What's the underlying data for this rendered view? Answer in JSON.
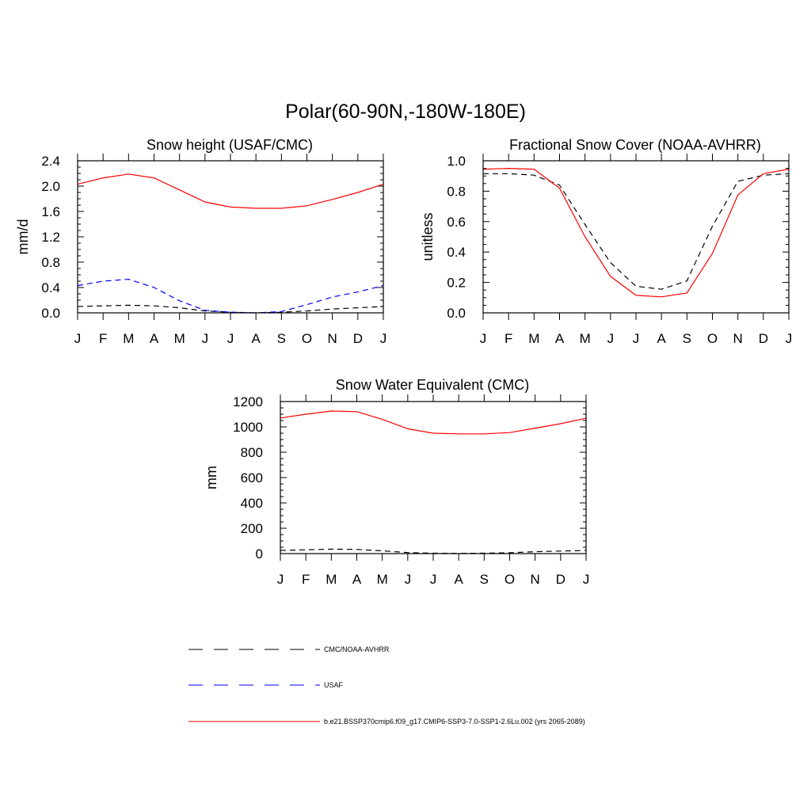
{
  "figure": {
    "title": "Polar(60-90N,-180W-180E)"
  },
  "styles": {
    "obs_color": "#000000",
    "usaf_color": "#0000ff",
    "model_color": "#ff0000"
  },
  "legend": {
    "items": [
      {
        "label": "CMC/NOAA-AVHRR",
        "color": "#000000",
        "dash": "dashed"
      },
      {
        "label": "USAF",
        "color": "#0000ff",
        "dash": "dashed"
      },
      {
        "label": "b.e21.BSSP370cmip6.f09_g17.CMIP6-SSP3-7.0-SSP1-2.6Lu.002 (yrs 2065-2089)",
        "color": "#ff0000",
        "dash": "solid"
      }
    ]
  },
  "chart_data": [
    {
      "type": "line",
      "title": "Snow height (USAF/CMC)",
      "ylabel": "mm/d",
      "xlabel": "",
      "categories": [
        "J",
        "F",
        "M",
        "A",
        "M",
        "J",
        "J",
        "A",
        "S",
        "O",
        "N",
        "D",
        "J"
      ],
      "ylim": [
        0,
        2.4
      ],
      "yticks": [
        0.0,
        0.4,
        0.8,
        1.2,
        1.6,
        2.0,
        2.4
      ],
      "ytick_labels": [
        "0.0",
        "0.4",
        "0.8",
        "1.2",
        "1.6",
        "2.0",
        "2.4"
      ],
      "grid": false,
      "series": [
        {
          "name": "CMC/NOAA-AVHRR",
          "color": "#000000",
          "dash": "dashed",
          "values": [
            0.1,
            0.11,
            0.12,
            0.11,
            0.08,
            0.03,
            0.01,
            0.0,
            0.01,
            0.03,
            0.06,
            0.08,
            0.1
          ]
        },
        {
          "name": "USAF",
          "color": "#0000ff",
          "dash": "dashed",
          "values": [
            0.43,
            0.5,
            0.53,
            0.4,
            0.19,
            0.04,
            0.01,
            0.0,
            0.02,
            0.13,
            0.25,
            0.33,
            0.43
          ]
        },
        {
          "name": "b.e21.BSSP370cmip6.f09_g17.CMIP6-SSP3-7.0-SSP1-2.6Lu.002 (yrs 2065-2089)",
          "color": "#ff0000",
          "dash": "solid",
          "values": [
            2.03,
            2.13,
            2.19,
            2.13,
            1.94,
            1.75,
            1.67,
            1.65,
            1.65,
            1.69,
            1.79,
            1.9,
            2.03
          ]
        }
      ]
    },
    {
      "type": "line",
      "title": "Fractional Snow Cover (NOAA-AVHRR)",
      "ylabel": "unitless",
      "xlabel": "",
      "categories": [
        "J",
        "F",
        "M",
        "A",
        "M",
        "J",
        "J",
        "A",
        "S",
        "O",
        "N",
        "D",
        "J"
      ],
      "ylim": [
        0,
        1.0
      ],
      "yticks": [
        0.0,
        0.2,
        0.4,
        0.6,
        0.8,
        1.0
      ],
      "ytick_labels": [
        "0.0",
        "0.2",
        "0.4",
        "0.6",
        "0.8",
        "1.0"
      ],
      "grid": false,
      "series": [
        {
          "name": "CMC/NOAA-AVHRR",
          "color": "#000000",
          "dash": "dashed",
          "values": [
            0.915,
            0.915,
            0.905,
            0.84,
            0.58,
            0.33,
            0.175,
            0.155,
            0.21,
            0.57,
            0.865,
            0.905,
            0.915
          ]
        },
        {
          "name": "b.e21.BSSP370cmip6.f09_g17.CMIP6-SSP3-7.0-SSP1-2.6Lu.002 (yrs 2065-2089)",
          "color": "#ff0000",
          "dash": "solid",
          "values": [
            0.945,
            0.95,
            0.945,
            0.82,
            0.5,
            0.24,
            0.115,
            0.105,
            0.13,
            0.39,
            0.775,
            0.915,
            0.945
          ]
        }
      ]
    },
    {
      "type": "line",
      "title": "Snow Water Equivalent (CMC)",
      "ylabel": "mm",
      "xlabel": "",
      "categories": [
        "J",
        "F",
        "M",
        "A",
        "M",
        "J",
        "J",
        "A",
        "S",
        "O",
        "N",
        "D",
        "J"
      ],
      "ylim": [
        0,
        1200
      ],
      "yticks": [
        0,
        200,
        400,
        600,
        800,
        1000,
        1200
      ],
      "ytick_labels": [
        "0",
        "200",
        "400",
        "600",
        "800",
        "1000",
        "1200"
      ],
      "grid": false,
      "series": [
        {
          "name": "CMC/NOAA-AVHRR",
          "color": "#000000",
          "dash": "dashed",
          "values": [
            25,
            30,
            35,
            33,
            22,
            8,
            3,
            2,
            3,
            7,
            15,
            20,
            25
          ]
        },
        {
          "name": "b.e21.BSSP370cmip6.f09_g17.CMIP6-SSP3-7.0-SSP1-2.6Lu.002 (yrs 2065-2089)",
          "color": "#ff0000",
          "dash": "solid",
          "values": [
            1070,
            1100,
            1125,
            1120,
            1060,
            985,
            950,
            945,
            945,
            955,
            990,
            1025,
            1068
          ]
        }
      ]
    }
  ]
}
